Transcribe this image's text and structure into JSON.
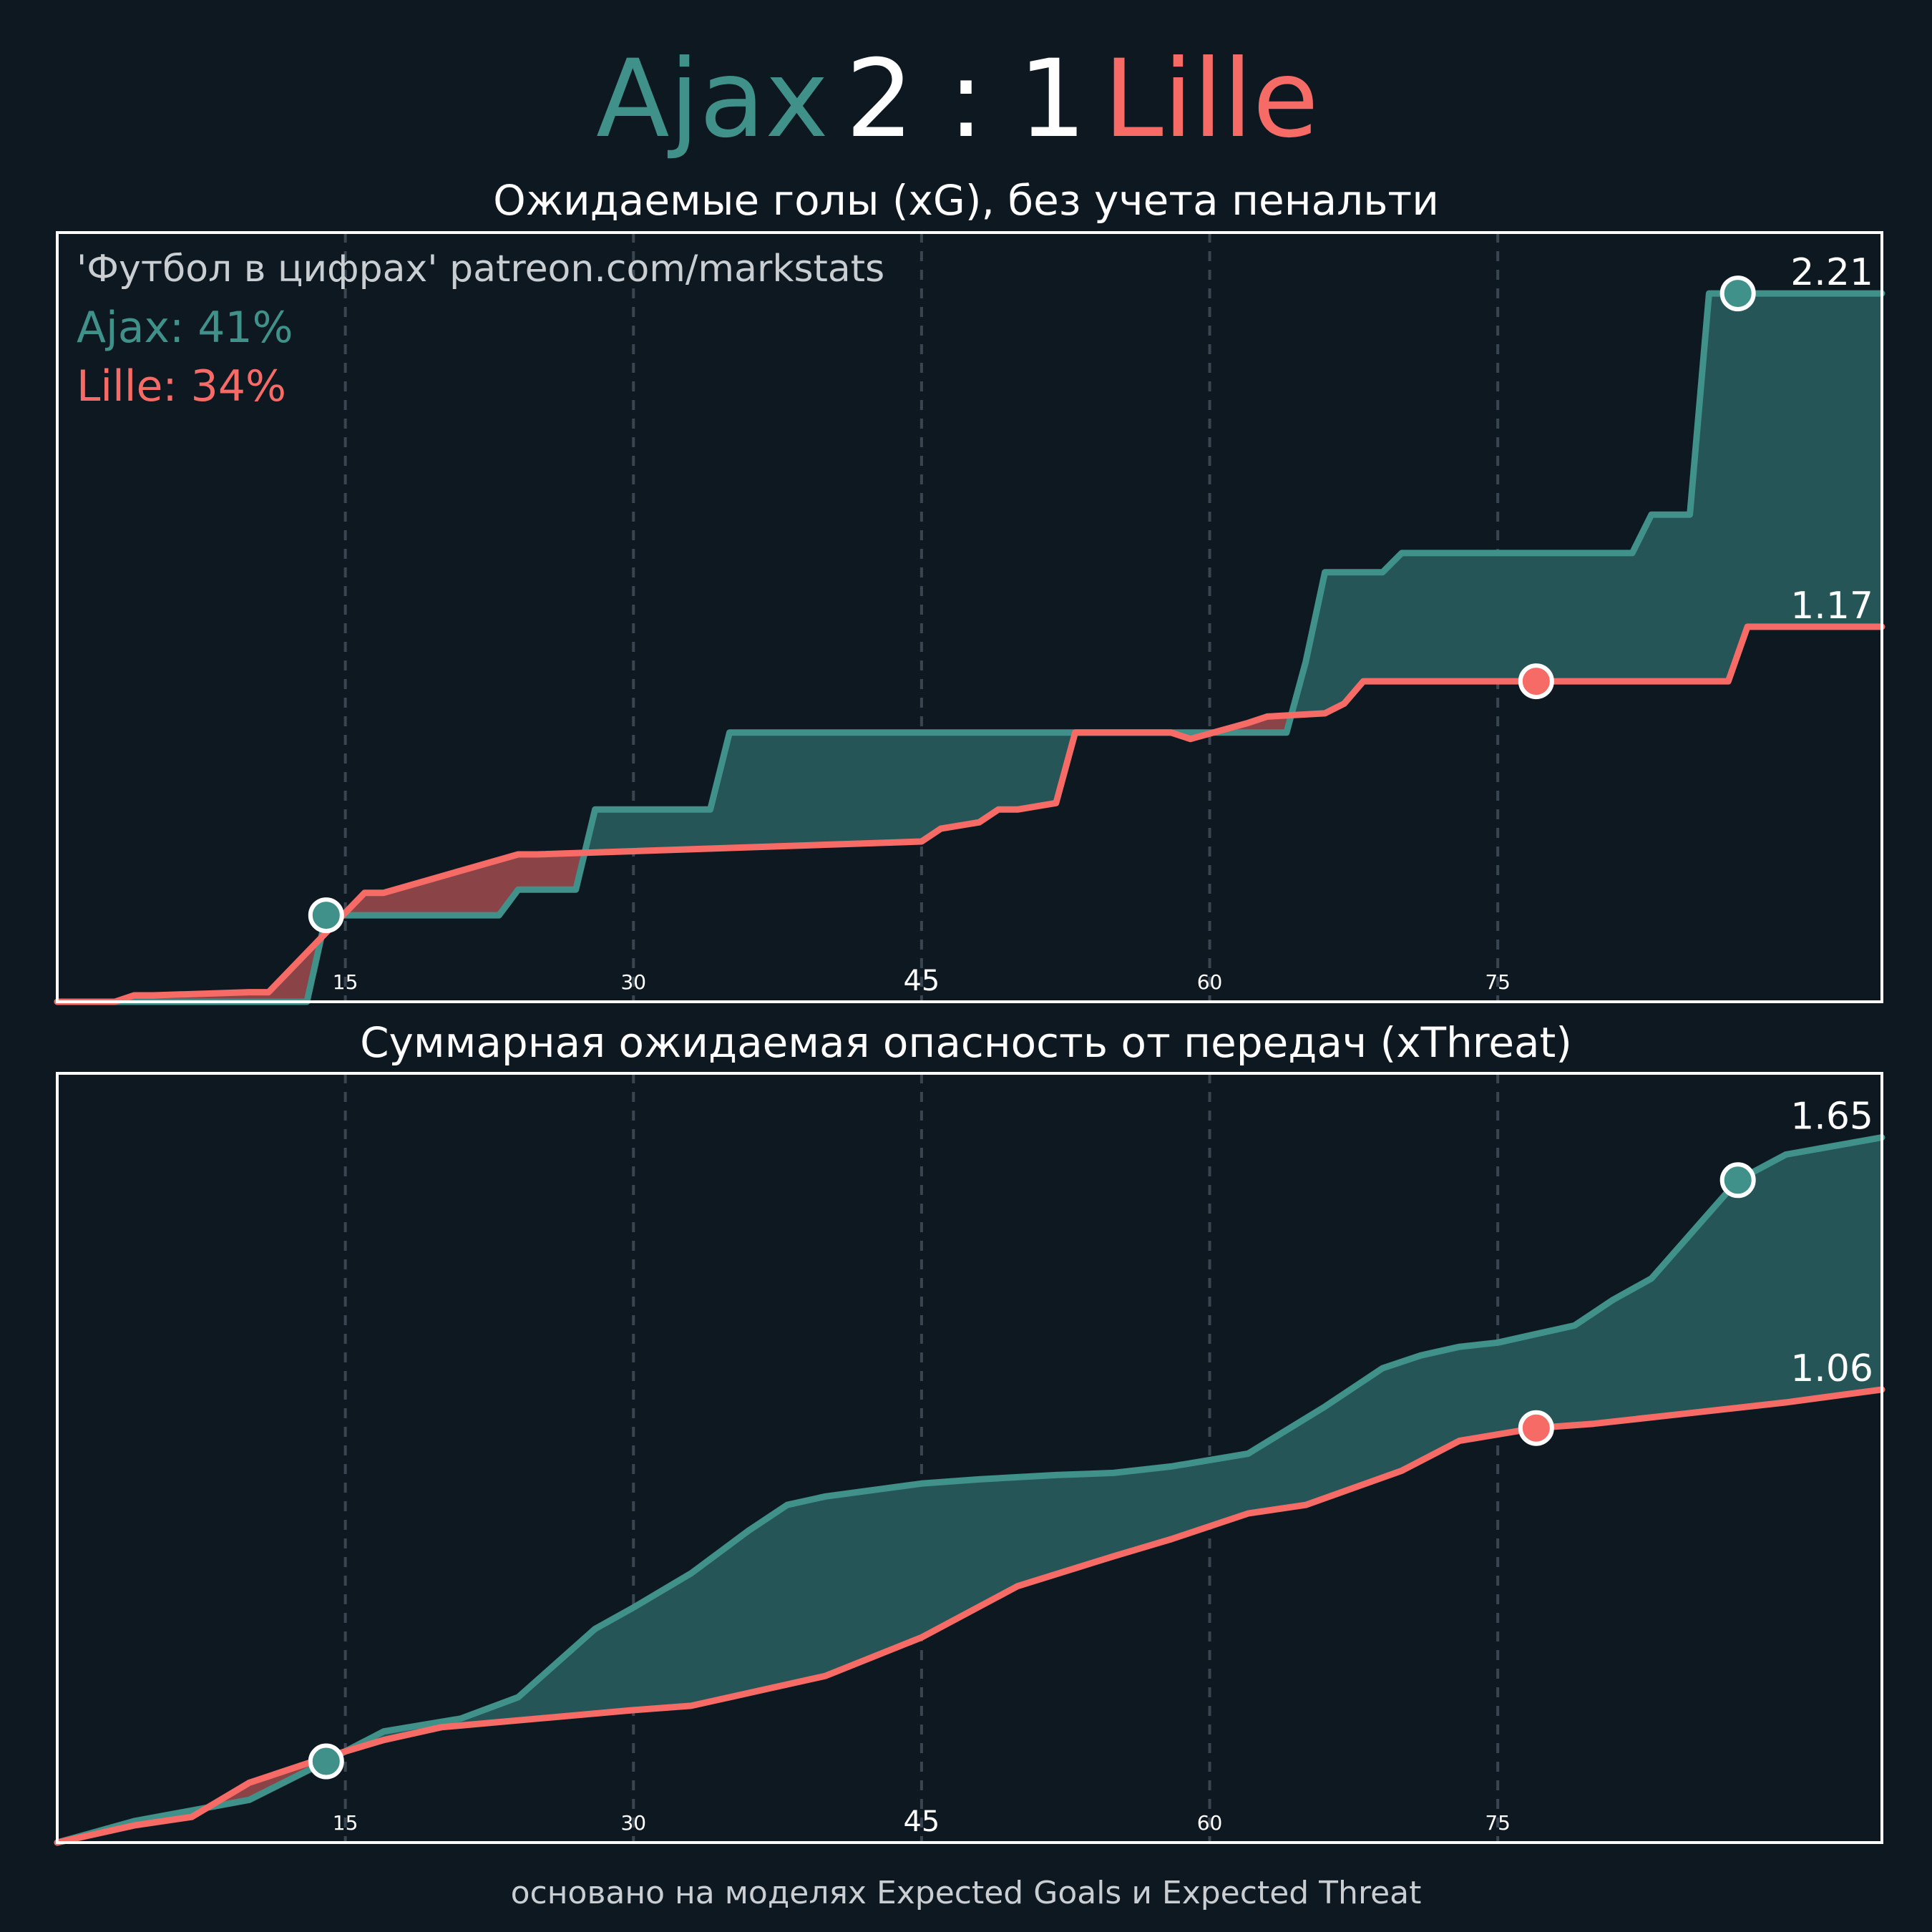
{
  "header": {
    "home_team": "Ajax",
    "score": "2 : 1",
    "away_team": "Lille"
  },
  "colors": {
    "background": "#0e1821",
    "home": "#3f9189",
    "away": "#f76b67",
    "home_fill": "#255557",
    "away_fill": "#8a4447",
    "grid": "#3a4552",
    "frame": "#ffffff"
  },
  "footer": "основано на моделях Expected Goals и Expected Threat",
  "chart_data": [
    {
      "type": "line",
      "title": "Ожидаемые голы (xG), без учета пенальти",
      "watermark": "'Футбол в цифрах' patreon.com/markstats",
      "legend": {
        "placement": "top-left",
        "home": "Ajax: 41%",
        "away": "Lille: 34%"
      },
      "xlim": [
        0,
        95
      ],
      "ylim": [
        0,
        2.4
      ],
      "grid": "vertical-dashed",
      "xticks": [
        {
          "value": 15,
          "label": "15"
        },
        {
          "value": 30,
          "label": "30"
        },
        {
          "value": 45,
          "label": "45"
        },
        {
          "value": 60,
          "label": "60"
        },
        {
          "value": 75,
          "label": "75"
        }
      ],
      "end_labels": {
        "home": "2.21",
        "away": "1.17"
      },
      "series": [
        {
          "name": "Ajax",
          "x": [
            0,
            13,
            14,
            23,
            24,
            27,
            28,
            34,
            35,
            64,
            65,
            66,
            69,
            70,
            82,
            83,
            85,
            86,
            95
          ],
          "y": [
            0,
            0,
            0.27,
            0.27,
            0.35,
            0.35,
            0.6,
            0.6,
            0.84,
            0.84,
            1.06,
            1.34,
            1.34,
            1.4,
            1.4,
            1.52,
            1.52,
            2.21,
            2.21
          ],
          "goals": [
            {
              "x": 14,
              "y": 0.27
            },
            {
              "x": 87.5,
              "y": 2.21
            }
          ]
        },
        {
          "name": "Lille",
          "x": [
            0,
            3,
            4,
            5,
            10,
            11,
            16,
            17,
            24,
            25,
            45,
            46,
            48,
            49,
            50,
            52,
            53,
            58,
            59,
            62,
            63,
            66,
            67,
            68,
            87,
            88,
            95
          ],
          "y": [
            0,
            0,
            0.02,
            0.02,
            0.03,
            0.03,
            0.34,
            0.34,
            0.46,
            0.46,
            0.5,
            0.54,
            0.56,
            0.6,
            0.6,
            0.62,
            0.84,
            0.84,
            0.82,
            0.87,
            0.89,
            0.9,
            0.93,
            1.0,
            1.0,
            1.17,
            1.17
          ],
          "goals": [
            {
              "x": 77,
              "y": 1.0
            }
          ]
        }
      ]
    },
    {
      "type": "line",
      "title": "Суммарная ожидаемая опасность от передач (xThreat)",
      "xlim": [
        0,
        95
      ],
      "ylim": [
        0,
        1.8
      ],
      "grid": "vertical-dashed",
      "xticks": [
        {
          "value": 15,
          "label": "15"
        },
        {
          "value": 30,
          "label": "30"
        },
        {
          "value": 45,
          "label": "45"
        },
        {
          "value": 60,
          "label": "60"
        },
        {
          "value": 75,
          "label": "75"
        }
      ],
      "end_labels": {
        "home": "1.65",
        "away": "1.06"
      },
      "series": [
        {
          "name": "Ajax",
          "x": [
            0,
            4,
            10,
            14,
            17,
            21,
            24,
            28,
            30,
            33,
            36,
            38,
            40,
            45,
            48,
            52,
            55,
            58,
            62,
            66,
            69,
            71,
            73,
            75,
            77,
            79,
            81,
            83,
            87.5,
            90,
            95
          ],
          "y": [
            0,
            0.05,
            0.1,
            0.19,
            0.26,
            0.29,
            0.34,
            0.5,
            0.55,
            0.63,
            0.73,
            0.79,
            0.81,
            0.84,
            0.85,
            0.86,
            0.865,
            0.88,
            0.91,
            1.02,
            1.11,
            1.14,
            1.16,
            1.17,
            1.19,
            1.21,
            1.27,
            1.32,
            1.55,
            1.61,
            1.65
          ],
          "goals": [
            {
              "x": 14,
              "y": 0.19
            },
            {
              "x": 87.5,
              "y": 1.55
            }
          ]
        },
        {
          "name": "Lille",
          "x": [
            0,
            4,
            7,
            10,
            14,
            17,
            20,
            25,
            30,
            33,
            37,
            40,
            45,
            50,
            55,
            58,
            62,
            65,
            70,
            73,
            77,
            80,
            84,
            90,
            95
          ],
          "y": [
            0,
            0.04,
            0.06,
            0.14,
            0.2,
            0.24,
            0.27,
            0.29,
            0.31,
            0.32,
            0.36,
            0.39,
            0.48,
            0.6,
            0.67,
            0.71,
            0.77,
            0.79,
            0.87,
            0.94,
            0.97,
            0.98,
            1.0,
            1.03,
            1.06
          ],
          "goals": [
            {
              "x": 77,
              "y": 0.97
            }
          ]
        }
      ]
    }
  ]
}
